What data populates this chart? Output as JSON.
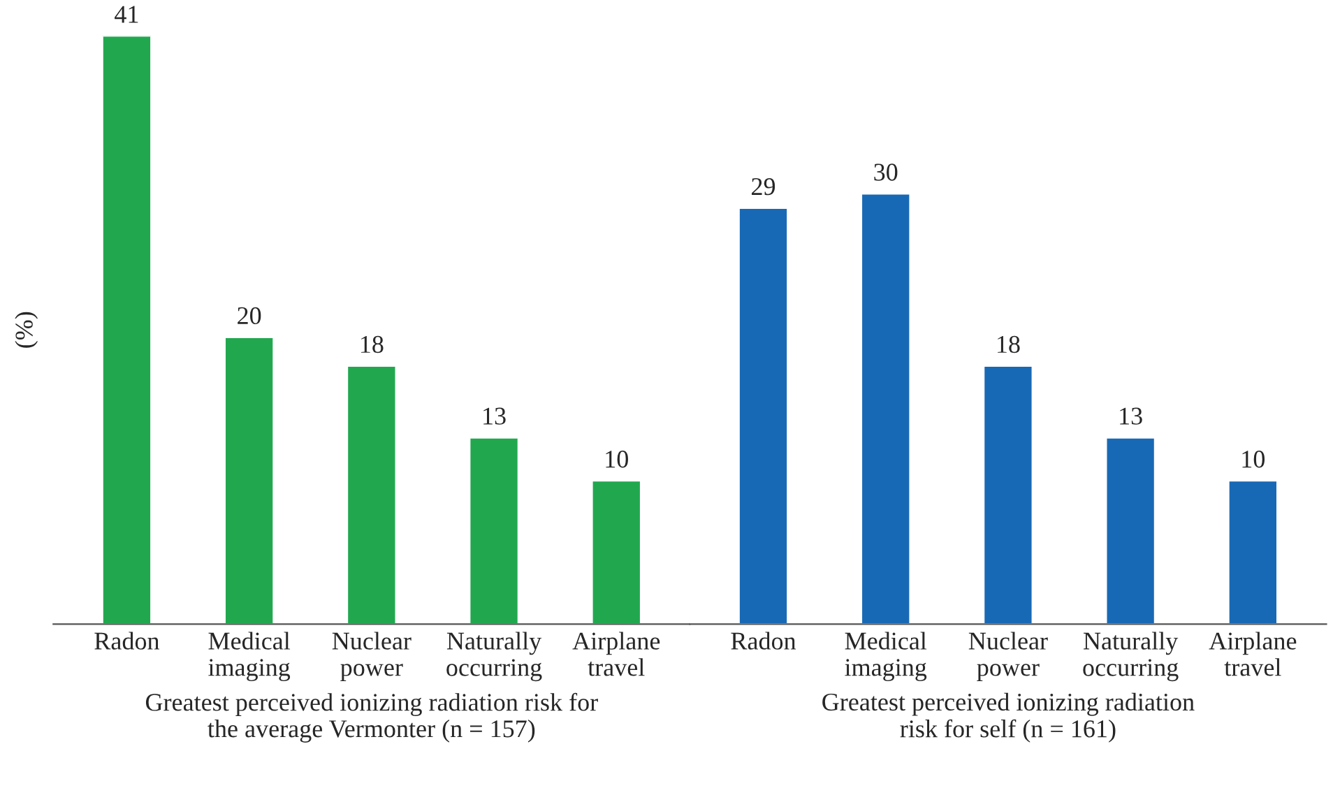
{
  "chart_data": [
    {
      "type": "bar",
      "categories": [
        "Radon",
        "Medical\nimaging",
        "Nuclear\npower",
        "Naturally\noccurring",
        "Airplane\ntravel"
      ],
      "values": [
        41,
        20,
        18,
        13,
        10
      ],
      "color": "#21a84f",
      "ylabel": "(%)",
      "xlabel": "Greatest perceived ionizing radiation risk for\nthe average Vermonter (n = 157)",
      "data_labels": true,
      "grid": false,
      "legend": false
    },
    {
      "type": "bar",
      "categories": [
        "Radon",
        "Medical\nimaging",
        "Nuclear\npower",
        "Naturally\noccurring",
        "Airplane\ntravel"
      ],
      "values": [
        29,
        30,
        18,
        13,
        10
      ],
      "color": "#1869b5",
      "xlabel": "Greatest perceived ionizing radiation\nrisk for self (n = 161)",
      "data_labels": true,
      "grid": false,
      "legend": false
    }
  ]
}
